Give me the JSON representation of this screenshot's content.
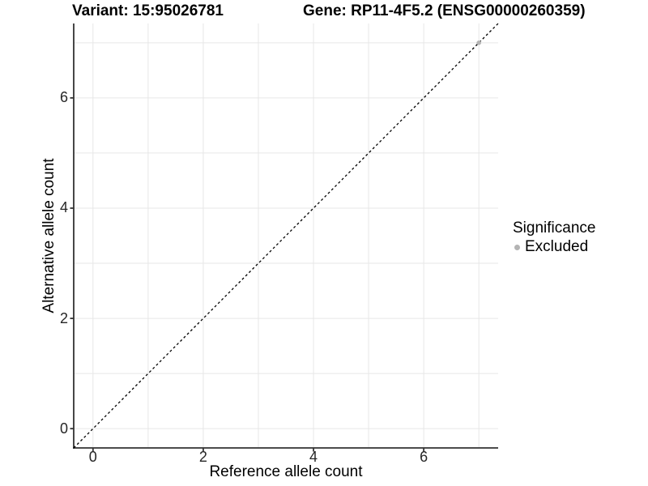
{
  "figure": {
    "title_variant": "Variant: 15:95026781",
    "title_gene": "Gene: RP11-4F5.2 (ENSG00000260359)"
  },
  "chart_data": {
    "type": "scatter",
    "title": "Variant: 15:95026781 — Gene: RP11-4F5.2 (ENSG00000260359)",
    "xlabel": "Reference allele count",
    "ylabel": "Alternative allele count",
    "xlim": [
      -0.35,
      7.35
    ],
    "ylim": [
      -0.35,
      7.35
    ],
    "x_ticks": [
      0,
      2,
      4,
      6
    ],
    "y_ticks": [
      0,
      2,
      4,
      6
    ],
    "grid": {
      "show": true,
      "interval": 1,
      "color": "#e7e7e7"
    },
    "identity_line": {
      "show": true,
      "equation": "y = x",
      "style": "dashed",
      "color": "#000000"
    },
    "series": [
      {
        "name": "Excluded",
        "color": "#b4b4b4",
        "points": [
          [
            7,
            7
          ]
        ]
      }
    ],
    "legend": {
      "position": "right",
      "title": "Significance",
      "entries": [
        {
          "label": "Excluded",
          "color": "#b4b4b4",
          "marker": "circle"
        }
      ]
    }
  },
  "colors": {
    "background": "#ffffff",
    "axis": "#333333",
    "tick_label": "#262626",
    "grid": "#e7e7e7",
    "point": "#b4b4b4"
  }
}
